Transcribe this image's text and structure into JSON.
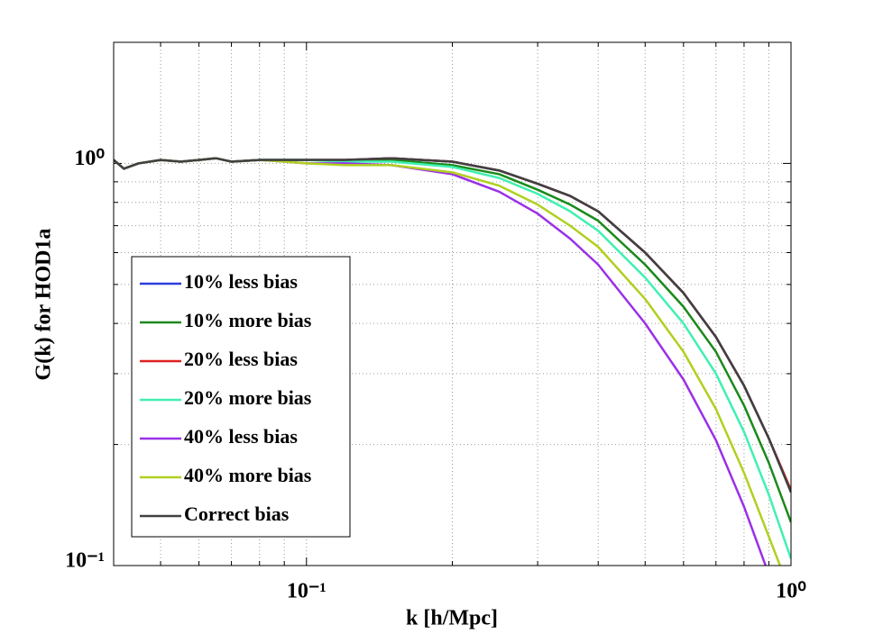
{
  "chart_data": {
    "type": "line",
    "xlabel": "k [h/Mpc]",
    "ylabel": "G(k) for HOD1a",
    "xscale": "log",
    "yscale": "log",
    "grid": true,
    "legend": "lower left",
    "xlim": [
      0.04,
      1
    ],
    "ylim": [
      0.1,
      2
    ],
    "xticks": [
      {
        "value": 0.1,
        "label": "10⁻¹"
      },
      {
        "value": 1,
        "label": "10⁰"
      }
    ],
    "yticks": [
      {
        "value": 0.1,
        "label": "10⁻¹"
      },
      {
        "value": 1,
        "label": "10⁰"
      }
    ],
    "xminor": [
      0.05,
      0.06,
      0.07,
      0.08,
      0.09,
      0.2,
      0.3,
      0.4,
      0.5,
      0.6,
      0.7,
      0.8,
      0.9
    ],
    "yminor": [
      0.2,
      0.3,
      0.4,
      0.5,
      0.6,
      0.7,
      0.8,
      0.9,
      2
    ],
    "x": [
      0.04,
      0.042,
      0.045,
      0.05,
      0.055,
      0.06,
      0.065,
      0.07,
      0.08,
      0.09,
      0.1,
      0.12,
      0.15,
      0.2,
      0.25,
      0.3,
      0.35,
      0.4,
      0.5,
      0.6,
      0.7,
      0.8,
      0.9,
      1.0
    ],
    "series": [
      {
        "name": "10% less bias",
        "color": "#2b3fde",
        "values": [
          1.02,
          0.97,
          1.0,
          1.02,
          1.01,
          1.02,
          1.03,
          1.01,
          1.02,
          1.02,
          1.02,
          1.02,
          1.03,
          1.01,
          0.96,
          0.89,
          0.83,
          0.76,
          0.6,
          0.476,
          0.37,
          0.28,
          0.207,
          0.153
        ]
      },
      {
        "name": "10% more bias",
        "color": "#1a8a1a",
        "values": [
          1.02,
          0.97,
          1.0,
          1.02,
          1.01,
          1.02,
          1.03,
          1.01,
          1.02,
          1.02,
          1.02,
          1.02,
          1.02,
          0.99,
          0.94,
          0.86,
          0.79,
          0.72,
          0.56,
          0.44,
          0.34,
          0.25,
          0.18,
          0.128
        ]
      },
      {
        "name": "20% less bias",
        "color": "#e02020",
        "values": [
          1.02,
          0.97,
          1.0,
          1.02,
          1.01,
          1.02,
          1.03,
          1.01,
          1.02,
          1.02,
          1.02,
          1.02,
          1.03,
          1.01,
          0.96,
          0.89,
          0.83,
          0.76,
          0.6,
          0.476,
          0.37,
          0.28,
          0.207,
          0.154
        ]
      },
      {
        "name": "20% more bias",
        "color": "#40f0b0",
        "values": [
          1.02,
          0.97,
          1.0,
          1.02,
          1.01,
          1.02,
          1.03,
          1.01,
          1.02,
          1.02,
          1.02,
          1.01,
          1.01,
          0.98,
          0.92,
          0.84,
          0.76,
          0.68,
          0.52,
          0.4,
          0.3,
          0.215,
          0.15,
          0.104
        ]
      },
      {
        "name": "40% less bias",
        "color": "#9b30e8",
        "values": [
          1.02,
          0.97,
          1.0,
          1.02,
          1.01,
          1.02,
          1.03,
          1.01,
          1.02,
          1.01,
          1.0,
          1.0,
          0.99,
          0.94,
          0.85,
          0.75,
          0.65,
          0.56,
          0.4,
          0.29,
          0.205,
          0.14,
          0.095,
          0.065
        ]
      },
      {
        "name": "40% more bias",
        "color": "#b0d020",
        "values": [
          1.02,
          0.97,
          1.0,
          1.02,
          1.01,
          1.02,
          1.03,
          1.01,
          1.02,
          1.01,
          1.0,
          0.99,
          0.99,
          0.95,
          0.88,
          0.79,
          0.7,
          0.62,
          0.46,
          0.34,
          0.245,
          0.17,
          0.118,
          0.085
        ]
      },
      {
        "name": "Correct bias",
        "color": "#404040",
        "values": [
          1.02,
          0.97,
          1.0,
          1.02,
          1.01,
          1.02,
          1.03,
          1.01,
          1.02,
          1.02,
          1.02,
          1.02,
          1.03,
          1.01,
          0.96,
          0.89,
          0.83,
          0.76,
          0.6,
          0.476,
          0.37,
          0.28,
          0.207,
          0.152
        ]
      }
    ]
  }
}
